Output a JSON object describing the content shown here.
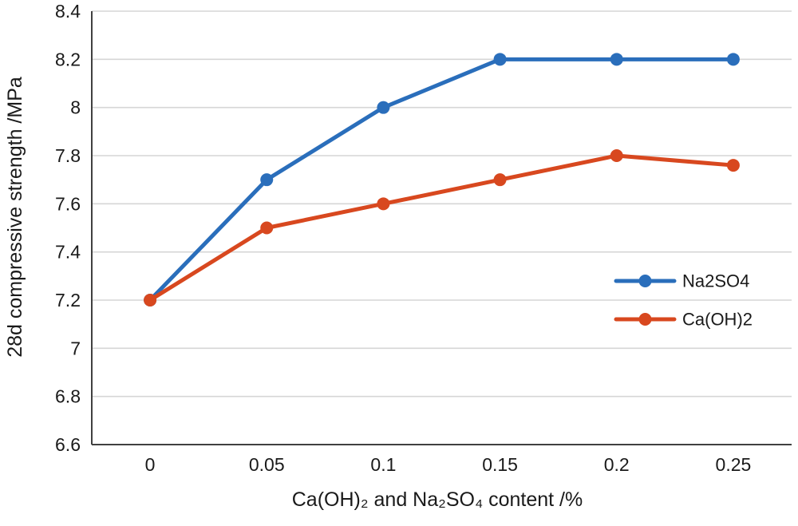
{
  "chart_data": {
    "type": "line",
    "title": "",
    "xlabel": "Ca(OH)₂ and Na₂SO₄ content /%",
    "ylabel": "28d compressive strength /MPa",
    "categories": [
      "0",
      "0.05",
      "0.1",
      "0.15",
      "0.2",
      "0.25"
    ],
    "x_values": [
      0,
      0.05,
      0.1,
      0.15,
      0.2,
      0.25
    ],
    "ylim": [
      6.6,
      8.4
    ],
    "ytick_values": [
      6.6,
      6.8,
      7.0,
      7.2,
      7.4,
      7.6,
      7.8,
      8.0,
      8.2,
      8.4
    ],
    "ytick_labels": [
      "6.6",
      "6.8",
      "7",
      "7.2",
      "7.4",
      "7.6",
      "7.8",
      "8",
      "8.2",
      "8.4"
    ],
    "grid": true,
    "legend_position": "inside-right",
    "series": [
      {
        "name": "Na2SO4",
        "color": "#2a6ebb",
        "values": [
          7.2,
          7.7,
          8.0,
          8.2,
          8.2,
          8.2
        ]
      },
      {
        "name": "Ca(OH)2",
        "color": "#d8481f",
        "values": [
          7.2,
          7.5,
          7.6,
          7.7,
          7.8,
          7.76
        ]
      }
    ],
    "colors": {
      "grid": "#d6d6d6",
      "axis": "#404040",
      "text": "#1a1a1a",
      "background": "#ffffff"
    }
  }
}
